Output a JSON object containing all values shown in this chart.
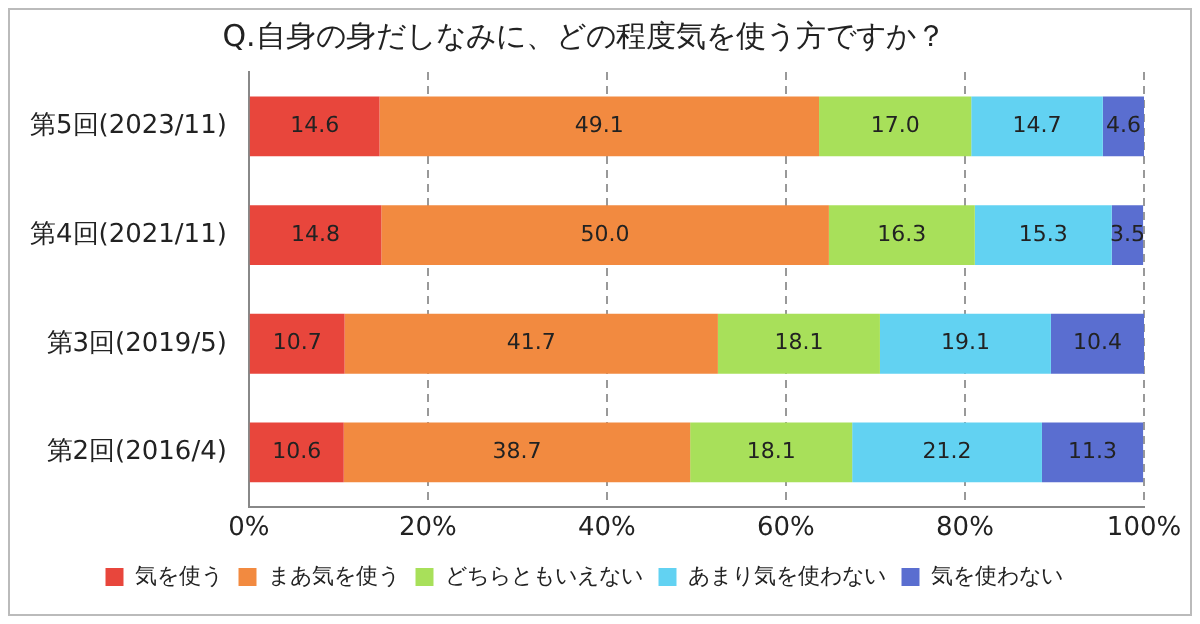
{
  "chart_data": {
    "type": "bar",
    "title": "Q.自身の身だしなみに、どの程度気を使う方ですか？",
    "orientation": "horizontal",
    "stacked": true,
    "grid": "x",
    "legend": "bottom",
    "categories": [
      "第5回(2023/11)",
      "第4回(2021/11)",
      "第3回(2019/5)",
      "第2回(2016/4)"
    ],
    "xlim": [
      0,
      100
    ],
    "xticks": [
      {
        "value": 0,
        "label": "0%"
      },
      {
        "value": 20,
        "label": "20%"
      },
      {
        "value": 40,
        "label": "40%"
      },
      {
        "value": 60,
        "label": "60%"
      },
      {
        "value": 80,
        "label": "80%"
      },
      {
        "value": 100,
        "label": "100%"
      }
    ],
    "series": [
      {
        "name": "気を使う",
        "color": "#e8463c",
        "values": [
          14.6,
          14.8,
          10.7,
          10.6
        ],
        "value_labels": [
          "14.6",
          "14.8",
          "10.7",
          "10.6"
        ]
      },
      {
        "name": "まあ気を使う",
        "color": "#f28a40",
        "values": [
          49.1,
          50,
          41.7,
          38.7
        ],
        "value_labels": [
          "49.1",
          "50.0",
          "41.7",
          "38.7"
        ]
      },
      {
        "name": "どちらともいえない",
        "color": "#a8e05a",
        "values": [
          17,
          16.3,
          18.1,
          18.1
        ],
        "value_labels": [
          "17.0",
          "16.3",
          "18.1",
          "18.1"
        ]
      },
      {
        "name": "あまり気を使わない",
        "color": "#62d2f2",
        "values": [
          14.7,
          15.3,
          19.1,
          21.2
        ],
        "value_labels": [
          "14.7",
          "15.3",
          "19.1",
          "21.2"
        ]
      },
      {
        "name": "気を使わない",
        "color": "#5a6ed0",
        "values": [
          4.6,
          3.5,
          10.4,
          11.3
        ],
        "value_labels": [
          "4.6",
          "3.5",
          "10.4",
          "11.3"
        ]
      }
    ]
  }
}
